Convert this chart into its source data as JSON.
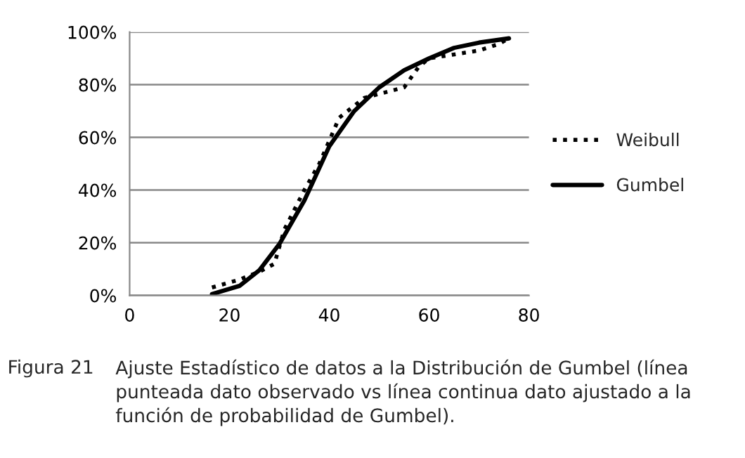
{
  "chart_data": {
    "type": "line",
    "series": [
      {
        "name": "Weibull",
        "color": "#000000",
        "line_style": "dotted",
        "x": [
          16.5,
          22,
          26,
          29,
          31,
          35,
          38,
          42,
          47,
          50,
          55,
          58,
          60,
          70,
          74,
          76
        ],
        "values": [
          3,
          6,
          9,
          12,
          25,
          40,
          50,
          67.5,
          75,
          76.5,
          79,
          87,
          90,
          93,
          95.5,
          97.6
        ]
      },
      {
        "name": "Gumbel",
        "color": "#000000",
        "line_style": "solid",
        "x": [
          16.5,
          22,
          26,
          30,
          35,
          40,
          45,
          50,
          55,
          60,
          65,
          70,
          76
        ],
        "values": [
          0.5,
          3.6,
          9.6,
          19.5,
          36,
          56.6,
          70,
          79,
          85.5,
          90,
          94,
          96,
          97.6
        ]
      }
    ],
    "xlim": [
      0,
      80
    ],
    "xticks": [
      0,
      20,
      40,
      60,
      80
    ],
    "ylim": [
      0,
      100
    ],
    "yticks": [
      {
        "value": 0,
        "label": "0%"
      },
      {
        "value": 20,
        "label": "20%"
      },
      {
        "value": 40,
        "label": "40%"
      },
      {
        "value": 60,
        "label": "60%"
      },
      {
        "value": 80,
        "label": "80%"
      },
      {
        "value": 100,
        "label": "100%"
      }
    ],
    "grid": "y",
    "legend": "right",
    "annotations": [
      "Figura 21",
      "Ajuste Estadístico de datos a la Distribución de Gumbel (línea punteada dato observado vs línea continua dato ajustado a la función de probabilidad de Gumbel)."
    ]
  }
}
